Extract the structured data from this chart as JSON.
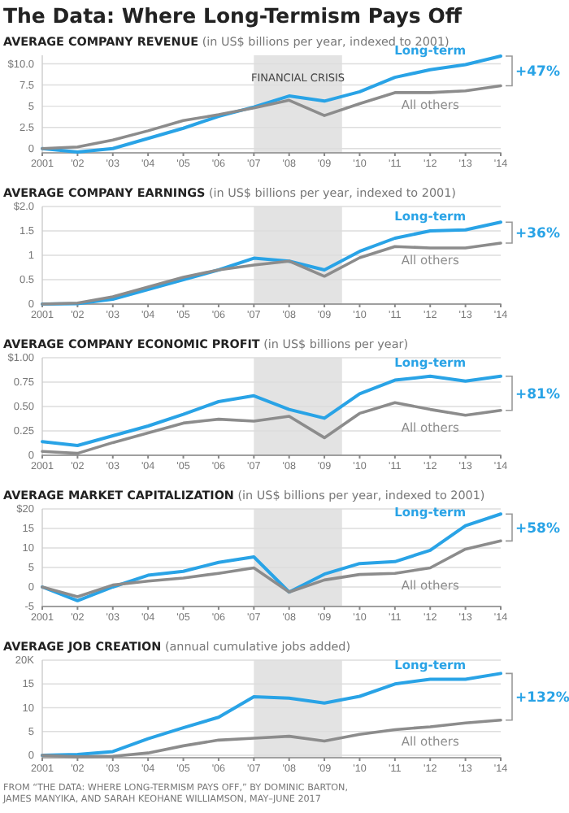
{
  "chart_data": [
    {
      "type": "line",
      "title": "The Data: Where Long-Termism Pays Off",
      "subtitle": "AVERAGE COMPANY REVENUE",
      "ylabel": "(in US$ billions per year, indexed to 2001)",
      "x": [
        2001,
        2002,
        2003,
        2004,
        2005,
        2006,
        2007,
        2008,
        2009,
        2010,
        2011,
        2012,
        2013,
        2014
      ],
      "xlim": [
        2001,
        2014
      ],
      "xticks": [
        {
          "value": 2001,
          "label": "2001"
        },
        {
          "value": 2002,
          "label": "'02"
        },
        {
          "value": 2003,
          "label": "'03"
        },
        {
          "value": 2004,
          "label": "'04"
        },
        {
          "value": 2005,
          "label": "'05"
        },
        {
          "value": 2006,
          "label": "'06"
        },
        {
          "value": 2007,
          "label": "'07"
        },
        {
          "value": 2008,
          "label": "'08"
        },
        {
          "value": 2009,
          "label": "'09"
        },
        {
          "value": 2010,
          "label": "'10"
        },
        {
          "value": 2011,
          "label": "'11"
        },
        {
          "value": 2012,
          "label": "'12"
        },
        {
          "value": 2013,
          "label": "'13"
        },
        {
          "value": 2014,
          "label": "'14"
        }
      ],
      "ylim": [
        -0.5,
        11
      ],
      "yticks": [
        0,
        2.5,
        5.0,
        7.5,
        {
          "value": 10,
          "label": "$10.0"
        }
      ],
      "grid": "y",
      "series": [
        {
          "name": "Long-term",
          "color": "#29a3e6",
          "values": [
            0,
            -0.4,
            0,
            1.2,
            2.4,
            3.8,
            4.9,
            6.2,
            5.6,
            6.7,
            8.4,
            9.3,
            9.9,
            10.9
          ]
        },
        {
          "name": "All others",
          "color": "#8c8c8c",
          "values": [
            0,
            0.2,
            1.0,
            2.1,
            3.3,
            4.0,
            4.8,
            5.7,
            3.9,
            5.3,
            6.6,
            6.6,
            6.8,
            7.4
          ]
        }
      ],
      "bands": [
        {
          "axis": "x",
          "from": 2007,
          "to": 2009.5,
          "label": "FINANCIAL CRISIS",
          "color": "#e3e3e3"
        }
      ],
      "annotations": [
        "+47%"
      ]
    },
    {
      "type": "line",
      "subtitle": "AVERAGE COMPANY EARNINGS",
      "ylabel": "(in US$ billions per year, indexed to 2001)",
      "x": [
        2001,
        2002,
        2003,
        2004,
        2005,
        2006,
        2007,
        2008,
        2009,
        2010,
        2011,
        2012,
        2013,
        2014
      ],
      "xlim": [
        2001,
        2014
      ],
      "xticks": [
        {
          "value": 2001,
          "label": "2001"
        },
        {
          "value": 2002,
          "label": "'02"
        },
        {
          "value": 2003,
          "label": "'03"
        },
        {
          "value": 2004,
          "label": "'04"
        },
        {
          "value": 2005,
          "label": "'05"
        },
        {
          "value": 2006,
          "label": "'06"
        },
        {
          "value": 2007,
          "label": "'07"
        },
        {
          "value": 2008,
          "label": "'08"
        },
        {
          "value": 2009,
          "label": "'09"
        },
        {
          "value": 2010,
          "label": "'10"
        },
        {
          "value": 2011,
          "label": "'11"
        },
        {
          "value": 2012,
          "label": "'12"
        },
        {
          "value": 2013,
          "label": "'13"
        },
        {
          "value": 2014,
          "label": "'14"
        }
      ],
      "ylim": [
        0,
        2
      ],
      "yticks": [
        0,
        0.5,
        1.0,
        1.5,
        {
          "value": 2,
          "label": "$2.0"
        }
      ],
      "grid": "y",
      "series": [
        {
          "name": "Long-term",
          "color": "#29a3e6",
          "values": [
            0,
            0.01,
            0.1,
            0.3,
            0.5,
            0.7,
            0.94,
            0.88,
            0.7,
            1.08,
            1.35,
            1.5,
            1.52,
            1.68
          ]
        },
        {
          "name": "All others",
          "color": "#8c8c8c",
          "values": [
            0,
            0.02,
            0.15,
            0.35,
            0.55,
            0.7,
            0.8,
            0.88,
            0.57,
            0.95,
            1.18,
            1.15,
            1.15,
            1.25
          ]
        }
      ],
      "bands": [
        {
          "axis": "x",
          "from": 2007,
          "to": 2009.5,
          "color": "#e3e3e3"
        }
      ],
      "annotations": [
        "+36%"
      ]
    },
    {
      "type": "line",
      "subtitle": "AVERAGE COMPANY ECONOMIC PROFIT",
      "ylabel": "(in US$ billions per year)",
      "x": [
        2001,
        2002,
        2003,
        2004,
        2005,
        2006,
        2007,
        2008,
        2009,
        2010,
        2011,
        2012,
        2013,
        2014
      ],
      "xlim": [
        2001,
        2014
      ],
      "xticks": [
        {
          "value": 2001,
          "label": "2001"
        },
        {
          "value": 2002,
          "label": "'02"
        },
        {
          "value": 2003,
          "label": "'03"
        },
        {
          "value": 2004,
          "label": "'04"
        },
        {
          "value": 2005,
          "label": "'05"
        },
        {
          "value": 2006,
          "label": "'06"
        },
        {
          "value": 2007,
          "label": "'07"
        },
        {
          "value": 2008,
          "label": "'08"
        },
        {
          "value": 2009,
          "label": "'09"
        },
        {
          "value": 2010,
          "label": "'10"
        },
        {
          "value": 2011,
          "label": "'11"
        },
        {
          "value": 2012,
          "label": "'12"
        },
        {
          "value": 2013,
          "label": "'13"
        },
        {
          "value": 2014,
          "label": "'14"
        }
      ],
      "ylim": [
        0,
        1
      ],
      "yticks": [
        0,
        0.25,
        {
          "value": 0.5,
          "label": "0.50"
        },
        0.75,
        {
          "value": 1,
          "label": "$1.00"
        }
      ],
      "grid": "y",
      "series": [
        {
          "name": "Long-term",
          "color": "#29a3e6",
          "values": [
            0.14,
            0.1,
            0.2,
            0.3,
            0.42,
            0.55,
            0.61,
            0.47,
            0.38,
            0.63,
            0.77,
            0.81,
            0.76,
            0.81
          ]
        },
        {
          "name": "All others",
          "color": "#8c8c8c",
          "values": [
            0.04,
            0.02,
            0.13,
            0.23,
            0.33,
            0.37,
            0.35,
            0.4,
            0.18,
            0.43,
            0.54,
            0.47,
            0.41,
            0.46
          ]
        }
      ],
      "bands": [
        {
          "axis": "x",
          "from": 2007,
          "to": 2009.5,
          "color": "#e3e3e3"
        }
      ],
      "annotations": [
        "+81%"
      ]
    },
    {
      "type": "line",
      "subtitle": "AVERAGE MARKET CAPITALIZATION",
      "ylabel": "(in US$ billions per year, indexed to 2001)",
      "x": [
        2001,
        2002,
        2003,
        2004,
        2005,
        2006,
        2007,
        2008,
        2009,
        2010,
        2011,
        2012,
        2013,
        2014
      ],
      "xlim": [
        2001,
        2014
      ],
      "xticks": [
        {
          "value": 2001,
          "label": "2001"
        },
        {
          "value": 2002,
          "label": "'02"
        },
        {
          "value": 2003,
          "label": "'03"
        },
        {
          "value": 2004,
          "label": "'04"
        },
        {
          "value": 2005,
          "label": "'05"
        },
        {
          "value": 2006,
          "label": "'06"
        },
        {
          "value": 2007,
          "label": "'07"
        },
        {
          "value": 2008,
          "label": "'08"
        },
        {
          "value": 2009,
          "label": "'09"
        },
        {
          "value": 2010,
          "label": "'10"
        },
        {
          "value": 2011,
          "label": "'11"
        },
        {
          "value": 2012,
          "label": "'12"
        },
        {
          "value": 2013,
          "label": "'13"
        },
        {
          "value": 2014,
          "label": "'14"
        }
      ],
      "ylim": [
        -5,
        20
      ],
      "yticks": [
        -5,
        0,
        5,
        10,
        15,
        {
          "value": 20,
          "label": "$20"
        }
      ],
      "grid": "y",
      "series": [
        {
          "name": "Long-term",
          "color": "#29a3e6",
          "values": [
            0,
            -3.5,
            0,
            3,
            4,
            6.3,
            7.7,
            -1.3,
            3.3,
            6,
            6.5,
            9.4,
            15.7,
            18.7
          ]
        },
        {
          "name": "All others",
          "color": "#8c8c8c",
          "values": [
            0,
            -2.5,
            0.5,
            1.5,
            2.3,
            3.5,
            4.9,
            -1.3,
            1.8,
            3.2,
            3.5,
            4.9,
            9.7,
            11.8
          ]
        }
      ],
      "bands": [
        {
          "axis": "x",
          "from": 2007,
          "to": 2009.5,
          "color": "#e3e3e3"
        }
      ],
      "annotations": [
        "+58%"
      ]
    },
    {
      "type": "line",
      "subtitle": "AVERAGE JOB CREATION",
      "ylabel": "(annual cumulative jobs added)",
      "x": [
        2001,
        2002,
        2003,
        2004,
        2005,
        2006,
        2007,
        2008,
        2009,
        2010,
        2011,
        2012,
        2013,
        2014
      ],
      "xlim": [
        2001,
        2014
      ],
      "xticks": [
        {
          "value": 2001,
          "label": "2001"
        },
        {
          "value": 2002,
          "label": "'02"
        },
        {
          "value": 2003,
          "label": "'03"
        },
        {
          "value": 2004,
          "label": "'04"
        },
        {
          "value": 2005,
          "label": "'05"
        },
        {
          "value": 2006,
          "label": "'06"
        },
        {
          "value": 2007,
          "label": "'07"
        },
        {
          "value": 2008,
          "label": "'08"
        },
        {
          "value": 2009,
          "label": "'09"
        },
        {
          "value": 2010,
          "label": "'10"
        },
        {
          "value": 2011,
          "label": "'11"
        },
        {
          "value": 2012,
          "label": "'12"
        },
        {
          "value": 2013,
          "label": "'13"
        },
        {
          "value": 2014,
          "label": "'14"
        }
      ],
      "ylim": [
        -0.5,
        20
      ],
      "yticks": [
        0,
        5,
        10,
        15,
        {
          "value": 20,
          "label": "20K"
        }
      ],
      "grid": "y",
      "series": [
        {
          "name": "Long-term",
          "color": "#29a3e6",
          "values": [
            0,
            0.2,
            0.8,
            3.5,
            5.8,
            8,
            12.3,
            12,
            11,
            12.4,
            15,
            16,
            16,
            17.2
          ]
        },
        {
          "name": "All others",
          "color": "#8c8c8c",
          "values": [
            0,
            -0.3,
            -0.2,
            0.5,
            2,
            3.2,
            3.6,
            4,
            3,
            4.4,
            5.4,
            6,
            6.8,
            7.4
          ]
        }
      ],
      "bands": [
        {
          "axis": "x",
          "from": 2007,
          "to": 2009.5,
          "color": "#e3e3e3"
        }
      ],
      "annotations": [
        "+132%",
        "FROM “THE DATA: WHERE LONG-TERMISM PAYS OFF,” BY DOMINIC BARTON,",
        "JAMES MANYIKA, AND SARAH KEOHANE WILLIAMSON, MAY–JUNE 2017"
      ]
    }
  ]
}
